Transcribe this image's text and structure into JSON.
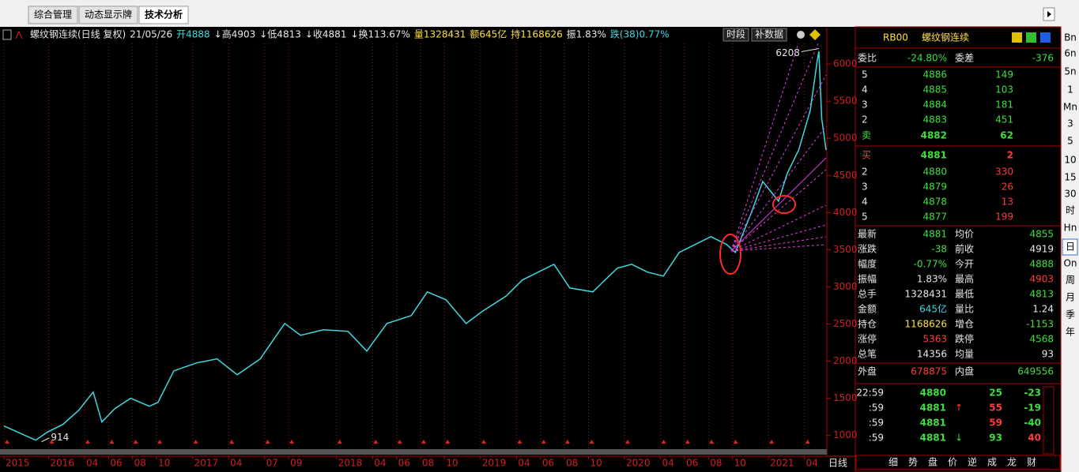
{
  "tabs": [
    "综合管理",
    "动态显示牌",
    "技术分析"
  ],
  "side_toolbar": [
    "Bn",
    "6n",
    "5n",
    "1",
    "Mn",
    "3",
    "5",
    "10",
    "15",
    "30",
    "时",
    "Hn",
    "日",
    "On",
    "周",
    "月",
    "季",
    "年"
  ],
  "chart_header": {
    "items": [
      {
        "text": "螺纹钢连续(日线 复权)",
        "color": "#e8e8e8"
      },
      {
        "text": "21/05/26",
        "color": "#e8e8e8"
      },
      {
        "text": "开4888",
        "color": "#40d8e0"
      },
      {
        "text": "↓高4903",
        "color": "#e8e8e8"
      },
      {
        "text": "↓低4813",
        "color": "#e8e8e8"
      },
      {
        "text": "↓收4881",
        "color": "#e8e8e8"
      },
      {
        "text": "↓换113.67%",
        "color": "#e8e8e8"
      },
      {
        "text": "量1328431",
        "color": "#ffe040"
      },
      {
        "text": "额645亿",
        "color": "#ffe040"
      },
      {
        "text": "持1168626",
        "color": "#ffe040"
      },
      {
        "text": "振1.83%",
        "color": "#e8e8e8"
      },
      {
        "text": "跌(38)0.77%",
        "color": "#40d8e0"
      }
    ],
    "buttons": [
      "时段",
      "补数据"
    ],
    "period": "日线"
  },
  "chart_data": {
    "type": "line",
    "color": "#40d8e0",
    "x": [
      2015.69,
      2015.91,
      2015.99,
      2016.1,
      2016.21,
      2016.31,
      2016.37,
      2016.46,
      2016.57,
      2016.7,
      2016.76,
      2016.87,
      2017.03,
      2017.17,
      2017.31,
      2017.47,
      2017.64,
      2017.75,
      2017.91,
      2018.08,
      2018.21,
      2018.35,
      2018.52,
      2018.63,
      2018.76,
      2018.9,
      2019.01,
      2019.18,
      2019.29,
      2019.4,
      2019.51,
      2019.62,
      2019.78,
      2019.95,
      2020.05,
      2020.16,
      2020.27,
      2020.38,
      2020.49,
      2020.6,
      2020.71,
      2020.77,
      2020.88,
      2020.96,
      2021.07,
      2021.13,
      2021.21,
      2021.29,
      2021.34,
      2021.35,
      2021.37,
      2021.4
    ],
    "values": [
      1127,
      936,
      1042,
      1149,
      1340,
      1584,
      1180,
      1361,
      1500,
      1393,
      1446,
      1870,
      1977,
      2030,
      1817,
      2030,
      2507,
      2348,
      2422,
      2401,
      2135,
      2507,
      2614,
      2932,
      2826,
      2507,
      2667,
      2879,
      3092,
      3198,
      3304,
      2985,
      2932,
      3251,
      3304,
      3198,
      3145,
      3464,
      3570,
      3676,
      3570,
      3464,
      3994,
      4419,
      4153,
      4525,
      4843,
      5374,
      6064,
      6170,
      5268,
      4843
    ],
    "annotations": [
      {
        "x": 2021.35,
        "value": 6208
      },
      {
        "x": 2015.95,
        "value": 914
      }
    ],
    "xlim": [
      2015.69,
      2021.4
    ],
    "ylim": [
      720,
      6490
    ],
    "yticks": [
      1000,
      1500,
      2000,
      2500,
      3000,
      3500,
      4000,
      4500,
      5000,
      5500,
      6000
    ],
    "xticks": [
      {
        "value": 2015.69,
        "label": "2015"
      },
      2016,
      {
        "value": 2016.25,
        "label": "04"
      },
      {
        "value": 2016.417,
        "label": "06"
      },
      {
        "value": 2016.583,
        "label": "08"
      },
      {
        "value": 2016.75,
        "label": "10"
      },
      2017,
      {
        "value": 2017.25,
        "label": "04"
      },
      {
        "value": 2017.5,
        "label": "07"
      },
      {
        "value": 2017.667,
        "label": "09"
      },
      2018,
      {
        "value": 2018.25,
        "label": "04"
      },
      {
        "value": 2018.417,
        "label": "06"
      },
      {
        "value": 2018.583,
        "label": "08"
      },
      {
        "value": 2018.75,
        "label": "10"
      },
      2019,
      {
        "value": 2019.25,
        "label": "04"
      },
      {
        "value": 2019.417,
        "label": "06"
      },
      {
        "value": 2019.583,
        "label": "08"
      },
      {
        "value": 2019.75,
        "label": "10"
      },
      2020,
      {
        "value": 2020.25,
        "label": "04"
      },
      {
        "value": 2020.417,
        "label": "06"
      },
      {
        "value": 2020.583,
        "label": "08"
      },
      {
        "value": 2020.75,
        "label": "10"
      },
      2021,
      {
        "value": 2021.25,
        "label": "04"
      }
    ],
    "grid": true
  },
  "quote": {
    "code": "RB00",
    "name": "螺纹钢连续",
    "ratio": [
      "委比",
      "-24.80%",
      "委差",
      "-376"
    ],
    "asks": [
      [
        "5",
        "4886",
        "149"
      ],
      [
        "4",
        "4885",
        "103"
      ],
      [
        "3",
        "4884",
        "181"
      ],
      [
        "2",
        "4883",
        "451"
      ],
      [
        "卖",
        "4882",
        "62"
      ]
    ],
    "bids": [
      [
        "买",
        "4881",
        "2"
      ],
      [
        "2",
        "4880",
        "330"
      ],
      [
        "3",
        "4879",
        "26"
      ],
      [
        "4",
        "4878",
        "13"
      ],
      [
        "5",
        "4877",
        "199"
      ]
    ],
    "stats": [
      [
        "最新",
        "4881",
        "均价",
        "4855"
      ],
      [
        "涨跌",
        "-38",
        "前收",
        "4919"
      ],
      [
        "幅度",
        "-0.77%",
        "今开",
        "4888"
      ],
      [
        "振幅",
        "1.83%",
        "最高",
        "4903"
      ],
      [
        "总手",
        "1328431",
        "最低",
        "4813"
      ],
      [
        "金额",
        "645亿",
        "量比",
        "1.24"
      ],
      [
        "持仓",
        "1168626",
        "增仓",
        "-1153"
      ],
      [
        "涨停",
        "5363",
        "跌停",
        "4568"
      ],
      [
        "总笔",
        "14356",
        "均量",
        "93"
      ]
    ],
    "outer_inner": [
      "外盘",
      "678875",
      "内盘",
      "649556"
    ],
    "ticks": [
      [
        "22:59",
        "4880",
        "",
        "25",
        "-23"
      ],
      [
        ":59",
        "4881",
        "↑",
        "55",
        "-19"
      ],
      [
        ":59",
        "4881",
        "",
        "59",
        "-40"
      ],
      [
        ":59",
        "4881",
        "↓",
        "93",
        "40"
      ]
    ],
    "bottom_tabs": [
      "细",
      "势",
      "盘",
      "价",
      "逆",
      "成",
      "龙",
      "财"
    ]
  }
}
